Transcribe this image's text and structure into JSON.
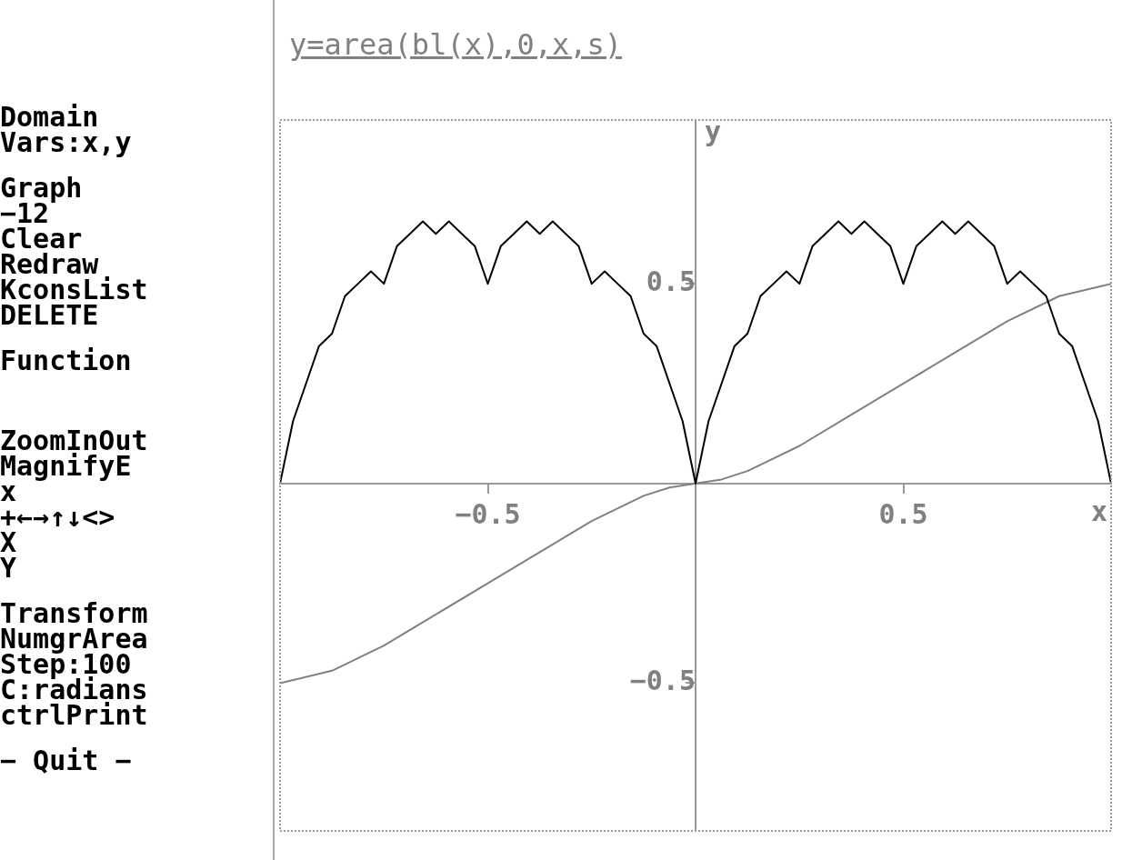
{
  "chart_data": {
    "type": "line",
    "title": "y=area(bl(x),0,x,s)",
    "xlabel": "x",
    "ylabel": "y",
    "xlim": [
      -1,
      1
    ],
    "ylim": [
      -0.87,
      0.91
    ],
    "xticks": [
      {
        "value": -0.5,
        "label": "−0.5"
      },
      {
        "value": 0.5,
        "label": "0.5"
      }
    ],
    "yticks": [
      {
        "value": -0.5,
        "label": "−0.5"
      },
      {
        "value": 0.5,
        "label": "0.5"
      }
    ],
    "grid": false,
    "legend": false,
    "marker": "none",
    "line_style": "solid",
    "annotations": [
      "Domain",
      "Vars:x,y",
      "Graph",
      "−12",
      "Clear",
      "Redraw",
      "KconsList",
      "DELETE",
      "Function",
      "ZoomInOut",
      "MagnifyE",
      "x",
      "+←→↑↓<>",
      "X",
      "Y",
      "Transform",
      "NumgrArea",
      "Step:100",
      "C:radians",
      "ctrlPrint",
      "− Quit −"
    ],
    "series": [
      {
        "color": "#000000",
        "x": [
          -1,
          -0.96875,
          -0.9375,
          -0.90625,
          -0.875,
          -0.84375,
          -0.8125,
          -0.78125,
          -0.75,
          -0.71875,
          -0.6875,
          -0.65625,
          -0.625,
          -0.59375,
          -0.5625,
          -0.53125,
          -0.5,
          -0.46875,
          -0.4375,
          -0.40625,
          -0.375,
          -0.34375,
          -0.3125,
          -0.28125,
          -0.25,
          -0.21875,
          -0.1875,
          -0.15625,
          -0.125,
          -0.09375,
          -0.0625,
          -0.03125,
          0,
          0.03125,
          0.0625,
          0.09375,
          0.125,
          0.15625,
          0.1875,
          0.21875,
          0.25,
          0.28125,
          0.3125,
          0.34375,
          0.375,
          0.40625,
          0.4375,
          0.46875,
          0.5,
          0.53125,
          0.5625,
          0.59375,
          0.625,
          0.65625,
          0.6875,
          0.71875,
          0.75,
          0.78125,
          0.8125,
          0.84375,
          0.875,
          0.90625,
          0.9375,
          0.96875,
          1
        ],
        "values": [
          0,
          0.156,
          0.25,
          0.344,
          0.375,
          0.469,
          0.5,
          0.531,
          0.5,
          0.594,
          0.625,
          0.656,
          0.625,
          0.656,
          0.625,
          0.594,
          0.5,
          0.594,
          0.625,
          0.656,
          0.625,
          0.656,
          0.625,
          0.594,
          0.5,
          0.531,
          0.5,
          0.469,
          0.375,
          0.344,
          0.25,
          0.156,
          0,
          0.156,
          0.25,
          0.344,
          0.375,
          0.469,
          0.5,
          0.531,
          0.5,
          0.594,
          0.625,
          0.656,
          0.625,
          0.656,
          0.625,
          0.594,
          0.5,
          0.594,
          0.625,
          0.656,
          0.625,
          0.656,
          0.625,
          0.594,
          0.5,
          0.531,
          0.5,
          0.469,
          0.375,
          0.344,
          0.25,
          0.156,
          0
        ]
      },
      {
        "color": "#808080",
        "x": [
          -1,
          -0.875,
          -0.75,
          -0.625,
          -0.5,
          -0.375,
          -0.25,
          -0.125,
          -0.0625,
          0,
          0.0625,
          0.125,
          0.25,
          0.375,
          0.5,
          0.625,
          0.75,
          0.875,
          1
        ],
        "values": [
          -0.5,
          -0.469,
          -0.406,
          -0.328,
          -0.25,
          -0.172,
          -0.094,
          -0.031,
          -0.01,
          0,
          0.01,
          0.031,
          0.094,
          0.172,
          0.25,
          0.328,
          0.406,
          0.469,
          0.5
        ]
      }
    ]
  }
}
